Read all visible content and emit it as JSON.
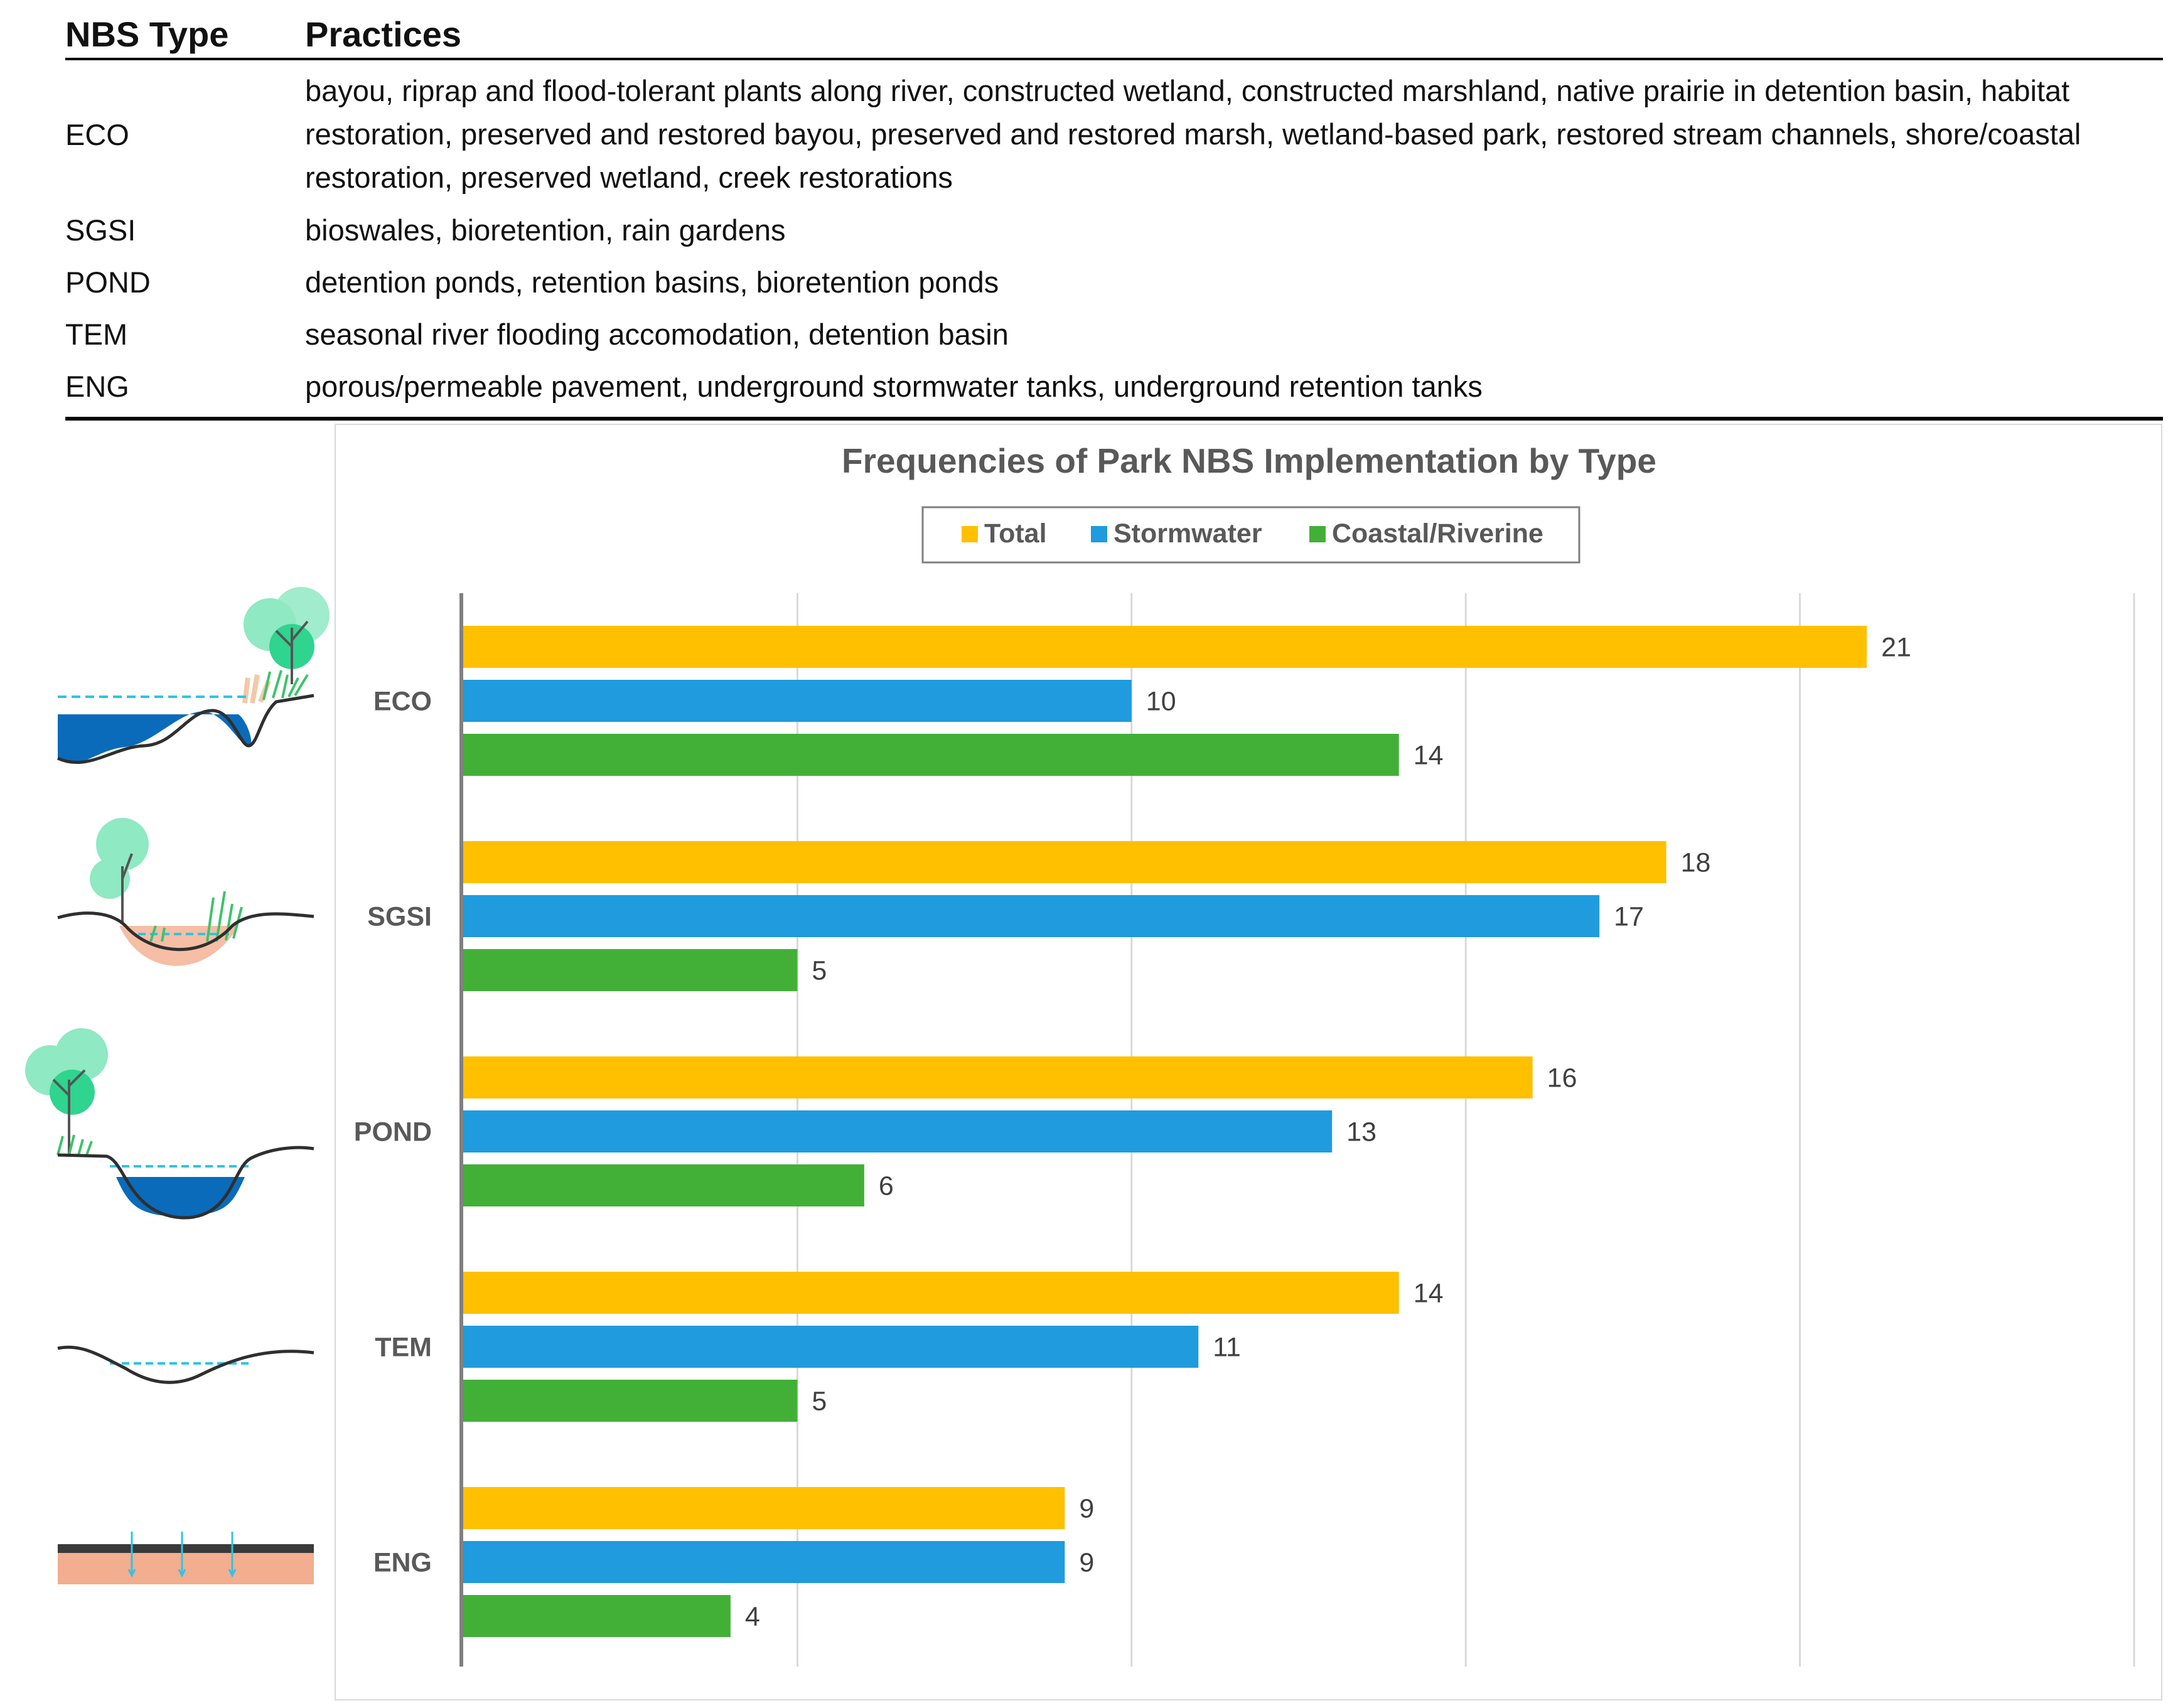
{
  "table": {
    "headers": [
      "NBS Type",
      "Practices"
    ],
    "rows": [
      {
        "type": "ECO",
        "lines": [
          "bayou, riprap and flood-tolerant plants along river, constructed wetland, constructed marshland, native prairie in detention basin, habitat",
          "restoration, preserved and restored bayou, preserved and restored marsh, wetland-based park, restored stream channels, shore/coastal",
          "restoration, preserved wetland, creek restorations"
        ]
      },
      {
        "type": "SGSI",
        "lines": [
          "bioswales, bioretention, rain gardens"
        ]
      },
      {
        "type": "POND",
        "lines": [
          "detention ponds, retention basins, bioretention ponds"
        ]
      },
      {
        "type": "TEM",
        "lines": [
          "seasonal river flooding accomodation, detention basin"
        ]
      },
      {
        "type": "ENG",
        "lines": [
          "porous/permeable pavement, underground stormwater tanks, underground retention tanks"
        ]
      }
    ]
  },
  "chart_data": {
    "type": "bar",
    "orientation": "horizontal",
    "title": "Frequencies of Park NBS Implementation by Type",
    "categories": [
      "ECO",
      "SGSI",
      "POND",
      "TEM",
      "ENG"
    ],
    "series": [
      {
        "name": "Total",
        "color": "#FFC000",
        "values": [
          21,
          18,
          16,
          14,
          9
        ]
      },
      {
        "name": "Stormwater",
        "color": "#1F9BDE",
        "values": [
          10,
          17,
          13,
          11,
          9
        ]
      },
      {
        "name": "Coastal/Riverine",
        "color": "#42B037",
        "values": [
          14,
          5,
          6,
          5,
          4
        ]
      }
    ],
    "xlim": [
      0,
      25
    ],
    "grid": true,
    "legend_position": "top",
    "xlabel": "",
    "ylabel": ""
  },
  "colors": {
    "water": "#0A6BBA",
    "waterline": "#2EC4E8",
    "ground": "#3A3A3A",
    "soil": "#F2AE8E",
    "tree": "#2FD48F",
    "tree_light": "#8FE9C3"
  }
}
